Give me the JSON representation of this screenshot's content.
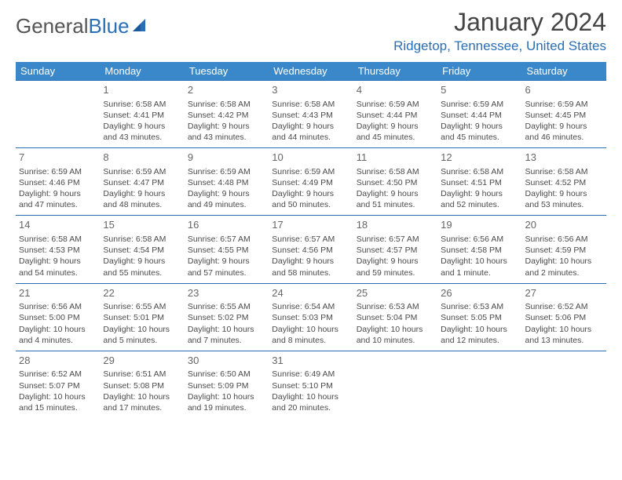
{
  "logo": {
    "text_gray": "General",
    "text_blue": "Blue"
  },
  "title": "January 2024",
  "location": "Ridgetop, Tennessee, United States",
  "day_headers": [
    "Sunday",
    "Monday",
    "Tuesday",
    "Wednesday",
    "Thursday",
    "Friday",
    "Saturday"
  ],
  "colors": {
    "header_bg": "#3a88c9",
    "border": "#2a6fb5",
    "logo_blue": "#2a6fb5"
  },
  "weeks": [
    [
      null,
      {
        "d": "1",
        "sr": "6:58 AM",
        "ss": "4:41 PM",
        "dl1": "Daylight: 9 hours",
        "dl2": "and 43 minutes."
      },
      {
        "d": "2",
        "sr": "6:58 AM",
        "ss": "4:42 PM",
        "dl1": "Daylight: 9 hours",
        "dl2": "and 43 minutes."
      },
      {
        "d": "3",
        "sr": "6:58 AM",
        "ss": "4:43 PM",
        "dl1": "Daylight: 9 hours",
        "dl2": "and 44 minutes."
      },
      {
        "d": "4",
        "sr": "6:59 AM",
        "ss": "4:44 PM",
        "dl1": "Daylight: 9 hours",
        "dl2": "and 45 minutes."
      },
      {
        "d": "5",
        "sr": "6:59 AM",
        "ss": "4:44 PM",
        "dl1": "Daylight: 9 hours",
        "dl2": "and 45 minutes."
      },
      {
        "d": "6",
        "sr": "6:59 AM",
        "ss": "4:45 PM",
        "dl1": "Daylight: 9 hours",
        "dl2": "and 46 minutes."
      }
    ],
    [
      {
        "d": "7",
        "sr": "6:59 AM",
        "ss": "4:46 PM",
        "dl1": "Daylight: 9 hours",
        "dl2": "and 47 minutes."
      },
      {
        "d": "8",
        "sr": "6:59 AM",
        "ss": "4:47 PM",
        "dl1": "Daylight: 9 hours",
        "dl2": "and 48 minutes."
      },
      {
        "d": "9",
        "sr": "6:59 AM",
        "ss": "4:48 PM",
        "dl1": "Daylight: 9 hours",
        "dl2": "and 49 minutes."
      },
      {
        "d": "10",
        "sr": "6:59 AM",
        "ss": "4:49 PM",
        "dl1": "Daylight: 9 hours",
        "dl2": "and 50 minutes."
      },
      {
        "d": "11",
        "sr": "6:58 AM",
        "ss": "4:50 PM",
        "dl1": "Daylight: 9 hours",
        "dl2": "and 51 minutes."
      },
      {
        "d": "12",
        "sr": "6:58 AM",
        "ss": "4:51 PM",
        "dl1": "Daylight: 9 hours",
        "dl2": "and 52 minutes."
      },
      {
        "d": "13",
        "sr": "6:58 AM",
        "ss": "4:52 PM",
        "dl1": "Daylight: 9 hours",
        "dl2": "and 53 minutes."
      }
    ],
    [
      {
        "d": "14",
        "sr": "6:58 AM",
        "ss": "4:53 PM",
        "dl1": "Daylight: 9 hours",
        "dl2": "and 54 minutes."
      },
      {
        "d": "15",
        "sr": "6:58 AM",
        "ss": "4:54 PM",
        "dl1": "Daylight: 9 hours",
        "dl2": "and 55 minutes."
      },
      {
        "d": "16",
        "sr": "6:57 AM",
        "ss": "4:55 PM",
        "dl1": "Daylight: 9 hours",
        "dl2": "and 57 minutes."
      },
      {
        "d": "17",
        "sr": "6:57 AM",
        "ss": "4:56 PM",
        "dl1": "Daylight: 9 hours",
        "dl2": "and 58 minutes."
      },
      {
        "d": "18",
        "sr": "6:57 AM",
        "ss": "4:57 PM",
        "dl1": "Daylight: 9 hours",
        "dl2": "and 59 minutes."
      },
      {
        "d": "19",
        "sr": "6:56 AM",
        "ss": "4:58 PM",
        "dl1": "Daylight: 10 hours",
        "dl2": "and 1 minute."
      },
      {
        "d": "20",
        "sr": "6:56 AM",
        "ss": "4:59 PM",
        "dl1": "Daylight: 10 hours",
        "dl2": "and 2 minutes."
      }
    ],
    [
      {
        "d": "21",
        "sr": "6:56 AM",
        "ss": "5:00 PM",
        "dl1": "Daylight: 10 hours",
        "dl2": "and 4 minutes."
      },
      {
        "d": "22",
        "sr": "6:55 AM",
        "ss": "5:01 PM",
        "dl1": "Daylight: 10 hours",
        "dl2": "and 5 minutes."
      },
      {
        "d": "23",
        "sr": "6:55 AM",
        "ss": "5:02 PM",
        "dl1": "Daylight: 10 hours",
        "dl2": "and 7 minutes."
      },
      {
        "d": "24",
        "sr": "6:54 AM",
        "ss": "5:03 PM",
        "dl1": "Daylight: 10 hours",
        "dl2": "and 8 minutes."
      },
      {
        "d": "25",
        "sr": "6:53 AM",
        "ss": "5:04 PM",
        "dl1": "Daylight: 10 hours",
        "dl2": "and 10 minutes."
      },
      {
        "d": "26",
        "sr": "6:53 AM",
        "ss": "5:05 PM",
        "dl1": "Daylight: 10 hours",
        "dl2": "and 12 minutes."
      },
      {
        "d": "27",
        "sr": "6:52 AM",
        "ss": "5:06 PM",
        "dl1": "Daylight: 10 hours",
        "dl2": "and 13 minutes."
      }
    ],
    [
      {
        "d": "28",
        "sr": "6:52 AM",
        "ss": "5:07 PM",
        "dl1": "Daylight: 10 hours",
        "dl2": "and 15 minutes."
      },
      {
        "d": "29",
        "sr": "6:51 AM",
        "ss": "5:08 PM",
        "dl1": "Daylight: 10 hours",
        "dl2": "and 17 minutes."
      },
      {
        "d": "30",
        "sr": "6:50 AM",
        "ss": "5:09 PM",
        "dl1": "Daylight: 10 hours",
        "dl2": "and 19 minutes."
      },
      {
        "d": "31",
        "sr": "6:49 AM",
        "ss": "5:10 PM",
        "dl1": "Daylight: 10 hours",
        "dl2": "and 20 minutes."
      },
      null,
      null,
      null
    ]
  ]
}
